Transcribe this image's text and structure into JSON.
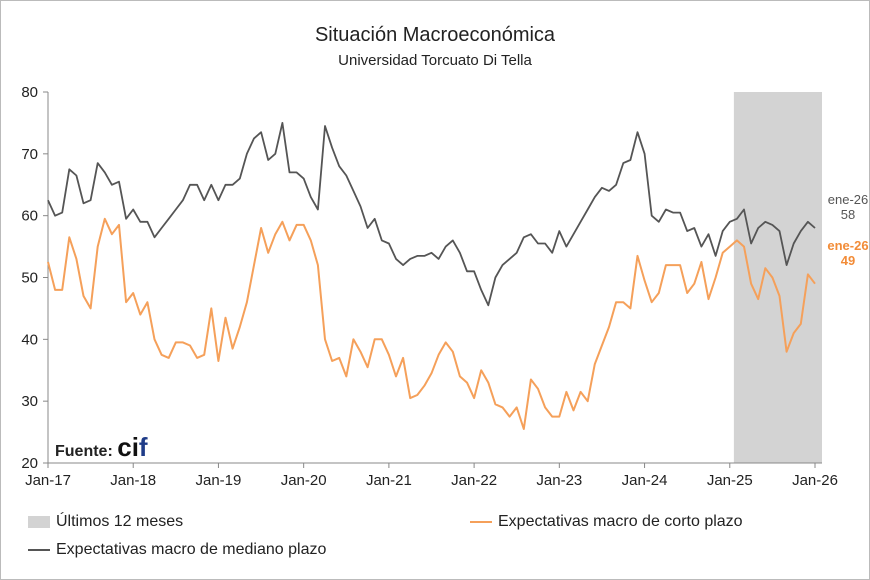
{
  "chart_data": {
    "type": "line",
    "title": "Situación Macroeconómica",
    "subtitle": "Universidad Torcuato Di Tella",
    "ylim": [
      20,
      80
    ],
    "yticks": [
      "20",
      "30",
      "40",
      "50",
      "60",
      "70",
      "80"
    ],
    "xticks": [
      "Jan-17",
      "Jan-18",
      "Jan-19",
      "Jan-20",
      "Jan-21",
      "Jan-22",
      "Jan-23",
      "Jan-24",
      "Jan-25",
      "Jan-26"
    ],
    "x_start": "2017-01",
    "x_end": "2026-01",
    "grid": false,
    "shaded_region": {
      "label": "Últimos 12 meses",
      "from": "2025-02",
      "to": "2026-01",
      "color": "#d3d3d3"
    },
    "series": [
      {
        "name": "Expectativas macro de corto plazo",
        "color": "#f5a05a",
        "values": [
          52.5,
          48,
          48,
          56.5,
          53,
          47,
          45,
          55,
          59.5,
          57,
          58.5,
          46,
          47.5,
          44,
          46,
          40,
          37.5,
          37,
          39.5,
          39.5,
          39,
          37,
          37.5,
          45,
          36.5,
          43.5,
          38.5,
          42,
          46,
          52,
          58,
          54,
          57,
          59,
          56,
          58.5,
          58.5,
          56,
          52,
          40,
          36.5,
          37,
          34,
          40,
          38,
          35.5,
          40,
          40,
          37.5,
          34,
          37,
          30.5,
          31,
          32.5,
          34.5,
          37.5,
          39.5,
          38,
          34,
          33,
          30.5,
          35,
          33,
          29.5,
          29,
          27.5,
          29,
          25.5,
          33.5,
          32,
          29,
          27.5,
          27.5,
          31.5,
          28.5,
          31.5,
          30,
          36,
          39,
          42,
          46,
          46,
          45,
          53.5,
          49.5,
          46,
          47.5,
          52,
          52,
          52,
          47.5,
          49,
          52.5,
          46.5,
          50,
          54,
          55,
          56,
          55,
          49,
          46.5,
          51.5,
          50,
          47,
          38,
          41,
          42.5,
          50.5,
          49
        ]
      },
      {
        "name": "Expectativas macro de mediano plazo",
        "color": "#555555",
        "values": [
          62.5,
          60,
          60.5,
          67.5,
          66.5,
          62,
          62.5,
          68.5,
          67,
          65,
          65.5,
          59.5,
          61,
          59,
          59,
          56.5,
          58,
          59.5,
          61,
          62.5,
          65,
          65,
          62.5,
          65,
          62.5,
          65,
          65,
          66,
          70,
          72.5,
          73.5,
          69,
          70,
          75,
          67,
          67,
          66,
          63,
          61,
          74.5,
          71,
          68,
          66.5,
          64,
          61.5,
          58,
          59.5,
          56,
          55.5,
          53,
          52,
          53,
          53.5,
          53.5,
          54,
          53,
          55,
          56,
          54,
          51,
          51,
          48,
          45.5,
          50,
          52,
          53,
          54,
          56.5,
          57,
          55.5,
          55.5,
          54,
          57.5,
          55,
          57,
          59,
          61,
          63,
          64.5,
          64,
          65,
          68.5,
          69,
          73.5,
          70,
          60,
          59,
          61,
          60.5,
          60.5,
          57.5,
          58,
          55,
          57,
          53.5,
          57.5,
          59,
          59.5,
          61,
          55.5,
          58,
          59,
          58.5,
          57.5,
          52,
          55.5,
          57.5,
          59,
          58
        ]
      }
    ],
    "end_labels": {
      "mediano": {
        "period": "ene-26",
        "value": "58"
      },
      "corto": {
        "period": "ene-26",
        "value": "49"
      }
    },
    "legend": {
      "placement": "bottom",
      "shade_label": "Últimos 12 meses",
      "short_label": "Expectativas macro de corto plazo",
      "medium_label": "Expectativas macro de mediano plazo"
    },
    "source": {
      "label": "Fuente:",
      "logo_text": "cif"
    }
  }
}
